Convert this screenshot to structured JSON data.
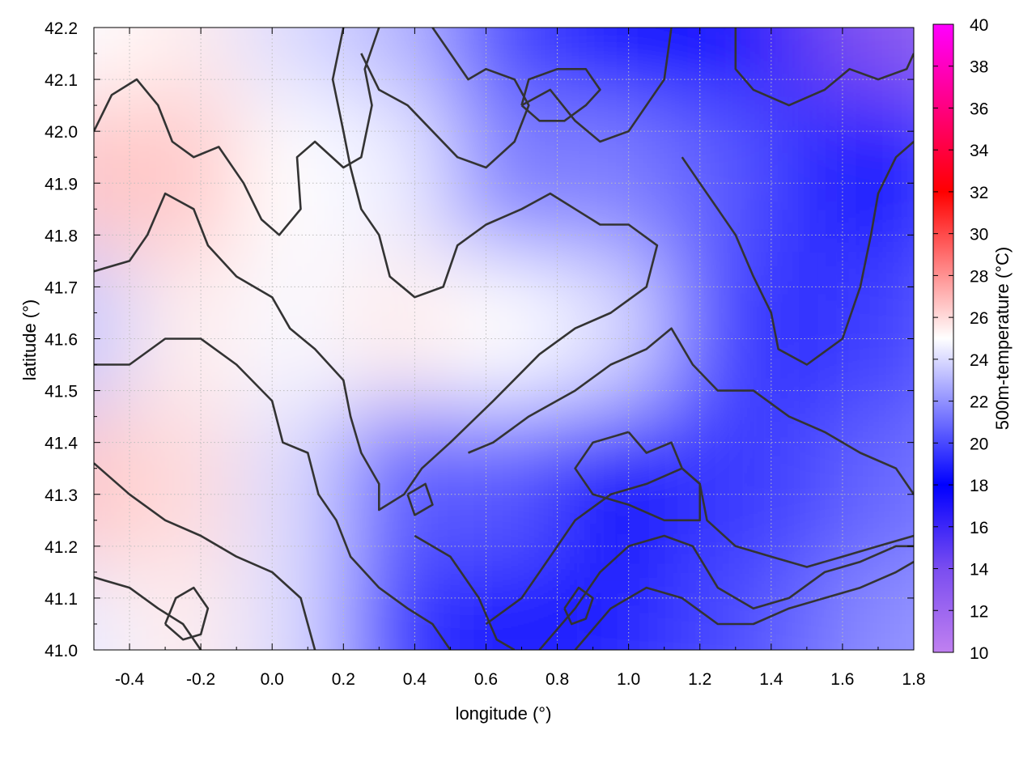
{
  "chart_data": {
    "type": "heatmap",
    "title": "",
    "xlabel": "longitude (°)",
    "ylabel": "latitude (°)",
    "colorbar_label": "500m-temperature (°C)",
    "xlim": [
      -0.5,
      1.8
    ],
    "ylim": [
      41.0,
      42.2
    ],
    "x_ticks": [
      -0.4,
      -0.2,
      0.0,
      0.2,
      0.4,
      0.6,
      0.8,
      1.0,
      1.2,
      1.4,
      1.6,
      1.8
    ],
    "x_tick_labels": [
      "-0.4",
      "-0.2",
      "0.0",
      "0.2",
      "0.4",
      "0.6",
      "0.8",
      "1.0",
      "1.2",
      "1.4",
      "1.6",
      "1.8"
    ],
    "y_ticks": [
      41.0,
      41.1,
      41.2,
      41.3,
      41.4,
      41.5,
      41.6,
      41.7,
      41.8,
      41.9,
      42.0,
      42.1,
      42.2
    ],
    "y_tick_labels": [
      "41.0",
      "41.1",
      "41.2",
      "41.3",
      "41.4",
      "41.5",
      "41.6",
      "41.7",
      "41.8",
      "41.9",
      "42.0",
      "42.1",
      "42.2"
    ],
    "colorbar_range": [
      10,
      40
    ],
    "colorbar_ticks": [
      10,
      12,
      14,
      16,
      18,
      20,
      22,
      24,
      26,
      28,
      30,
      32,
      34,
      36,
      38,
      40
    ],
    "colorbar_tick_labels": [
      "10",
      "12",
      "14",
      "16",
      "18",
      "20",
      "22",
      "24",
      "26",
      "28",
      "30",
      "32",
      "34",
      "36",
      "38",
      "40"
    ],
    "colormap": [
      {
        "value": 10,
        "color": "#c080f0"
      },
      {
        "value": 14,
        "color": "#7a4df0"
      },
      {
        "value": 18,
        "color": "#0000ff"
      },
      {
        "value": 25,
        "color": "#ffffff"
      },
      {
        "value": 32,
        "color": "#ff0000"
      },
      {
        "value": 40,
        "color": "#ff00ff"
      }
    ],
    "grid": true,
    "heatmap_lon": [
      -0.5,
      -0.2,
      0.1,
      0.4,
      0.7,
      1.0,
      1.3,
      1.6,
      1.8
    ],
    "heatmap_lat": [
      42.2,
      41.9,
      41.6,
      41.3,
      41.0
    ],
    "heatmap_values": [
      [
        25.0,
        25.5,
        24.0,
        23.0,
        20.0,
        18.0,
        18.0,
        15.0,
        13.0
      ],
      [
        26.5,
        26.5,
        25.0,
        24.5,
        21.5,
        21.5,
        20.5,
        19.0,
        19.0
      ],
      [
        23.5,
        25.5,
        24.8,
        25.5,
        25.0,
        24.0,
        20.0,
        19.0,
        20.0
      ],
      [
        26.5,
        26.0,
        24.0,
        20.5,
        20.5,
        17.5,
        19.5,
        20.0,
        21.0
      ],
      [
        24.5,
        25.5,
        24.0,
        19.5,
        18.5,
        19.0,
        20.0,
        21.0,
        22.0
      ]
    ],
    "contour_lines": [
      [
        [
          -0.5,
          42.0
        ],
        [
          -0.45,
          42.07
        ],
        [
          -0.38,
          42.1
        ],
        [
          -0.32,
          42.05
        ],
        [
          -0.28,
          41.98
        ],
        [
          -0.22,
          41.95
        ],
        [
          -0.15,
          41.97
        ],
        [
          -0.08,
          41.9
        ],
        [
          -0.03,
          41.83
        ],
        [
          0.02,
          41.8
        ],
        [
          0.08,
          41.85
        ],
        [
          0.07,
          41.95
        ],
        [
          0.12,
          41.98
        ],
        [
          0.2,
          41.93
        ],
        [
          0.25,
          41.95
        ],
        [
          0.28,
          42.05
        ],
        [
          0.26,
          42.12
        ],
        [
          0.3,
          42.2
        ]
      ],
      [
        [
          -0.5,
          41.73
        ],
        [
          -0.4,
          41.75
        ],
        [
          -0.35,
          41.8
        ],
        [
          -0.3,
          41.88
        ],
        [
          -0.22,
          41.85
        ],
        [
          -0.18,
          41.78
        ],
        [
          -0.1,
          41.72
        ],
        [
          0.0,
          41.68
        ],
        [
          0.05,
          41.62
        ],
        [
          0.12,
          41.58
        ],
        [
          0.2,
          41.52
        ],
        [
          0.22,
          41.45
        ],
        [
          0.25,
          41.38
        ],
        [
          0.3,
          41.32
        ],
        [
          0.3,
          41.27
        ],
        [
          0.37,
          41.3
        ],
        [
          0.42,
          41.35
        ],
        [
          0.5,
          41.4
        ],
        [
          0.62,
          41.48
        ],
        [
          0.75,
          41.57
        ],
        [
          0.85,
          41.62
        ],
        [
          0.95,
          41.65
        ],
        [
          1.05,
          41.7
        ],
        [
          1.08,
          41.78
        ],
        [
          1.0,
          41.82
        ],
        [
          0.92,
          41.82
        ],
        [
          0.85,
          41.85
        ],
        [
          0.78,
          41.88
        ],
        [
          0.7,
          41.85
        ],
        [
          0.6,
          41.82
        ],
        [
          0.52,
          41.78
        ],
        [
          0.48,
          41.7
        ],
        [
          0.4,
          41.68
        ],
        [
          0.33,
          41.72
        ],
        [
          0.3,
          41.8
        ],
        [
          0.25,
          41.85
        ],
        [
          0.22,
          41.93
        ],
        [
          0.2,
          42.0
        ],
        [
          0.17,
          42.1
        ],
        [
          0.2,
          42.2
        ]
      ],
      [
        [
          -0.5,
          41.55
        ],
        [
          -0.4,
          41.55
        ],
        [
          -0.3,
          41.6
        ],
        [
          -0.2,
          41.6
        ],
        [
          -0.1,
          41.55
        ],
        [
          0.0,
          41.48
        ],
        [
          0.03,
          41.4
        ],
        [
          0.1,
          41.38
        ],
        [
          0.13,
          41.3
        ],
        [
          0.18,
          41.25
        ],
        [
          0.22,
          41.18
        ],
        [
          0.3,
          41.12
        ],
        [
          0.38,
          41.08
        ],
        [
          0.45,
          41.05
        ],
        [
          0.5,
          41.0
        ]
      ],
      [
        [
          -0.5,
          41.36
        ],
        [
          -0.4,
          41.3
        ],
        [
          -0.3,
          41.25
        ],
        [
          -0.2,
          41.22
        ],
        [
          -0.1,
          41.18
        ],
        [
          0.0,
          41.15
        ],
        [
          0.08,
          41.1
        ],
        [
          0.1,
          41.05
        ],
        [
          0.12,
          41.0
        ]
      ],
      [
        [
          -0.5,
          41.14
        ],
        [
          -0.4,
          41.12
        ],
        [
          -0.32,
          41.08
        ],
        [
          -0.25,
          41.05
        ],
        [
          -0.2,
          41.0
        ]
      ],
      [
        [
          0.4,
          41.22
        ],
        [
          0.5,
          41.18
        ],
        [
          0.58,
          41.1
        ],
        [
          0.63,
          41.02
        ],
        [
          0.68,
          41.0
        ]
      ],
      [
        [
          0.55,
          41.38
        ],
        [
          0.62,
          41.4
        ],
        [
          0.72,
          41.45
        ],
        [
          0.85,
          41.5
        ],
        [
          0.95,
          41.55
        ],
        [
          1.05,
          41.58
        ],
        [
          1.12,
          41.62
        ],
        [
          1.18,
          41.55
        ],
        [
          1.25,
          41.5
        ],
        [
          1.35,
          41.5
        ],
        [
          1.45,
          41.45
        ],
        [
          1.55,
          41.42
        ],
        [
          1.65,
          41.38
        ],
        [
          1.75,
          41.35
        ],
        [
          1.8,
          41.3
        ]
      ],
      [
        [
          0.6,
          41.05
        ],
        [
          0.7,
          41.1
        ],
        [
          0.78,
          41.18
        ],
        [
          0.85,
          41.25
        ],
        [
          0.95,
          41.3
        ],
        [
          1.05,
          41.32
        ],
        [
          1.15,
          41.35
        ],
        [
          1.2,
          41.32
        ],
        [
          1.22,
          41.25
        ],
        [
          1.3,
          41.2
        ],
        [
          1.4,
          41.18
        ],
        [
          1.5,
          41.16
        ],
        [
          1.6,
          41.18
        ],
        [
          1.7,
          41.2
        ],
        [
          1.8,
          41.22
        ]
      ],
      [
        [
          0.75,
          41.0
        ],
        [
          0.85,
          41.08
        ],
        [
          0.92,
          41.15
        ],
        [
          1.0,
          41.2
        ],
        [
          1.1,
          41.22
        ],
        [
          1.18,
          41.2
        ],
        [
          1.25,
          41.12
        ],
        [
          1.35,
          41.08
        ],
        [
          1.45,
          41.1
        ],
        [
          1.55,
          41.15
        ],
        [
          1.65,
          41.17
        ],
        [
          1.75,
          41.2
        ],
        [
          1.8,
          41.2
        ]
      ],
      [
        [
          0.85,
          41.0
        ],
        [
          0.95,
          41.08
        ],
        [
          1.05,
          41.12
        ],
        [
          1.15,
          41.1
        ],
        [
          1.25,
          41.05
        ],
        [
          1.35,
          41.05
        ],
        [
          1.45,
          41.08
        ],
        [
          1.55,
          41.1
        ],
        [
          1.65,
          41.12
        ],
        [
          1.75,
          41.15
        ],
        [
          1.8,
          41.17
        ]
      ],
      [
        [
          0.25,
          42.15
        ],
        [
          0.3,
          42.08
        ],
        [
          0.38,
          42.05
        ],
        [
          0.45,
          42.0
        ],
        [
          0.52,
          41.95
        ],
        [
          0.6,
          41.93
        ],
        [
          0.68,
          41.98
        ],
        [
          0.72,
          42.05
        ],
        [
          0.68,
          42.1
        ],
        [
          0.6,
          42.12
        ],
        [
          0.55,
          42.1
        ],
        [
          0.5,
          42.15
        ],
        [
          0.45,
          42.2
        ]
      ],
      [
        [
          0.7,
          42.05
        ],
        [
          0.78,
          42.08
        ],
        [
          0.85,
          42.02
        ],
        [
          0.92,
          41.98
        ],
        [
          1.0,
          42.0
        ],
        [
          1.05,
          42.05
        ],
        [
          1.1,
          42.1
        ],
        [
          1.12,
          42.2
        ]
      ],
      [
        [
          1.3,
          42.2
        ],
        [
          1.3,
          42.12
        ],
        [
          1.35,
          42.08
        ],
        [
          1.45,
          42.05
        ],
        [
          1.55,
          42.08
        ],
        [
          1.62,
          42.12
        ],
        [
          1.7,
          42.1
        ],
        [
          1.78,
          42.12
        ],
        [
          1.8,
          42.15
        ]
      ],
      [
        [
          1.15,
          41.95
        ],
        [
          1.2,
          41.9
        ],
        [
          1.25,
          41.85
        ],
        [
          1.3,
          41.8
        ],
        [
          1.35,
          41.72
        ],
        [
          1.4,
          41.65
        ],
        [
          1.42,
          41.58
        ],
        [
          1.5,
          41.55
        ],
        [
          1.6,
          41.6
        ],
        [
          1.65,
          41.7
        ],
        [
          1.68,
          41.8
        ],
        [
          1.7,
          41.88
        ],
        [
          1.75,
          41.95
        ],
        [
          1.8,
          41.98
        ]
      ],
      [
        [
          1.0,
          41.42
        ],
        [
          1.05,
          41.38
        ],
        [
          1.12,
          41.4
        ],
        [
          1.15,
          41.35
        ],
        [
          1.2,
          41.32
        ],
        [
          1.2,
          41.25
        ],
        [
          1.1,
          41.25
        ],
        [
          1.0,
          41.28
        ],
        [
          0.9,
          41.3
        ],
        [
          0.85,
          41.35
        ],
        [
          0.9,
          41.4
        ],
        [
          1.0,
          41.42
        ]
      ],
      [
        [
          0.7,
          42.05
        ],
        [
          0.75,
          42.02
        ],
        [
          0.82,
          42.02
        ],
        [
          0.88,
          42.05
        ],
        [
          0.92,
          42.08
        ],
        [
          0.88,
          42.12
        ],
        [
          0.8,
          42.12
        ],
        [
          0.72,
          42.1
        ],
        [
          0.7,
          42.05
        ]
      ],
      [
        [
          -0.3,
          41.05
        ],
        [
          -0.27,
          41.1
        ],
        [
          -0.22,
          41.12
        ],
        [
          -0.18,
          41.08
        ],
        [
          -0.2,
          41.03
        ],
        [
          -0.25,
          41.02
        ],
        [
          -0.3,
          41.05
        ]
      ],
      [
        [
          0.38,
          41.3
        ],
        [
          0.43,
          41.32
        ],
        [
          0.45,
          41.28
        ],
        [
          0.4,
          41.26
        ],
        [
          0.38,
          41.3
        ]
      ],
      [
        [
          0.82,
          41.08
        ],
        [
          0.86,
          41.12
        ],
        [
          0.9,
          41.1
        ],
        [
          0.88,
          41.06
        ],
        [
          0.84,
          41.05
        ],
        [
          0.82,
          41.08
        ]
      ]
    ]
  }
}
